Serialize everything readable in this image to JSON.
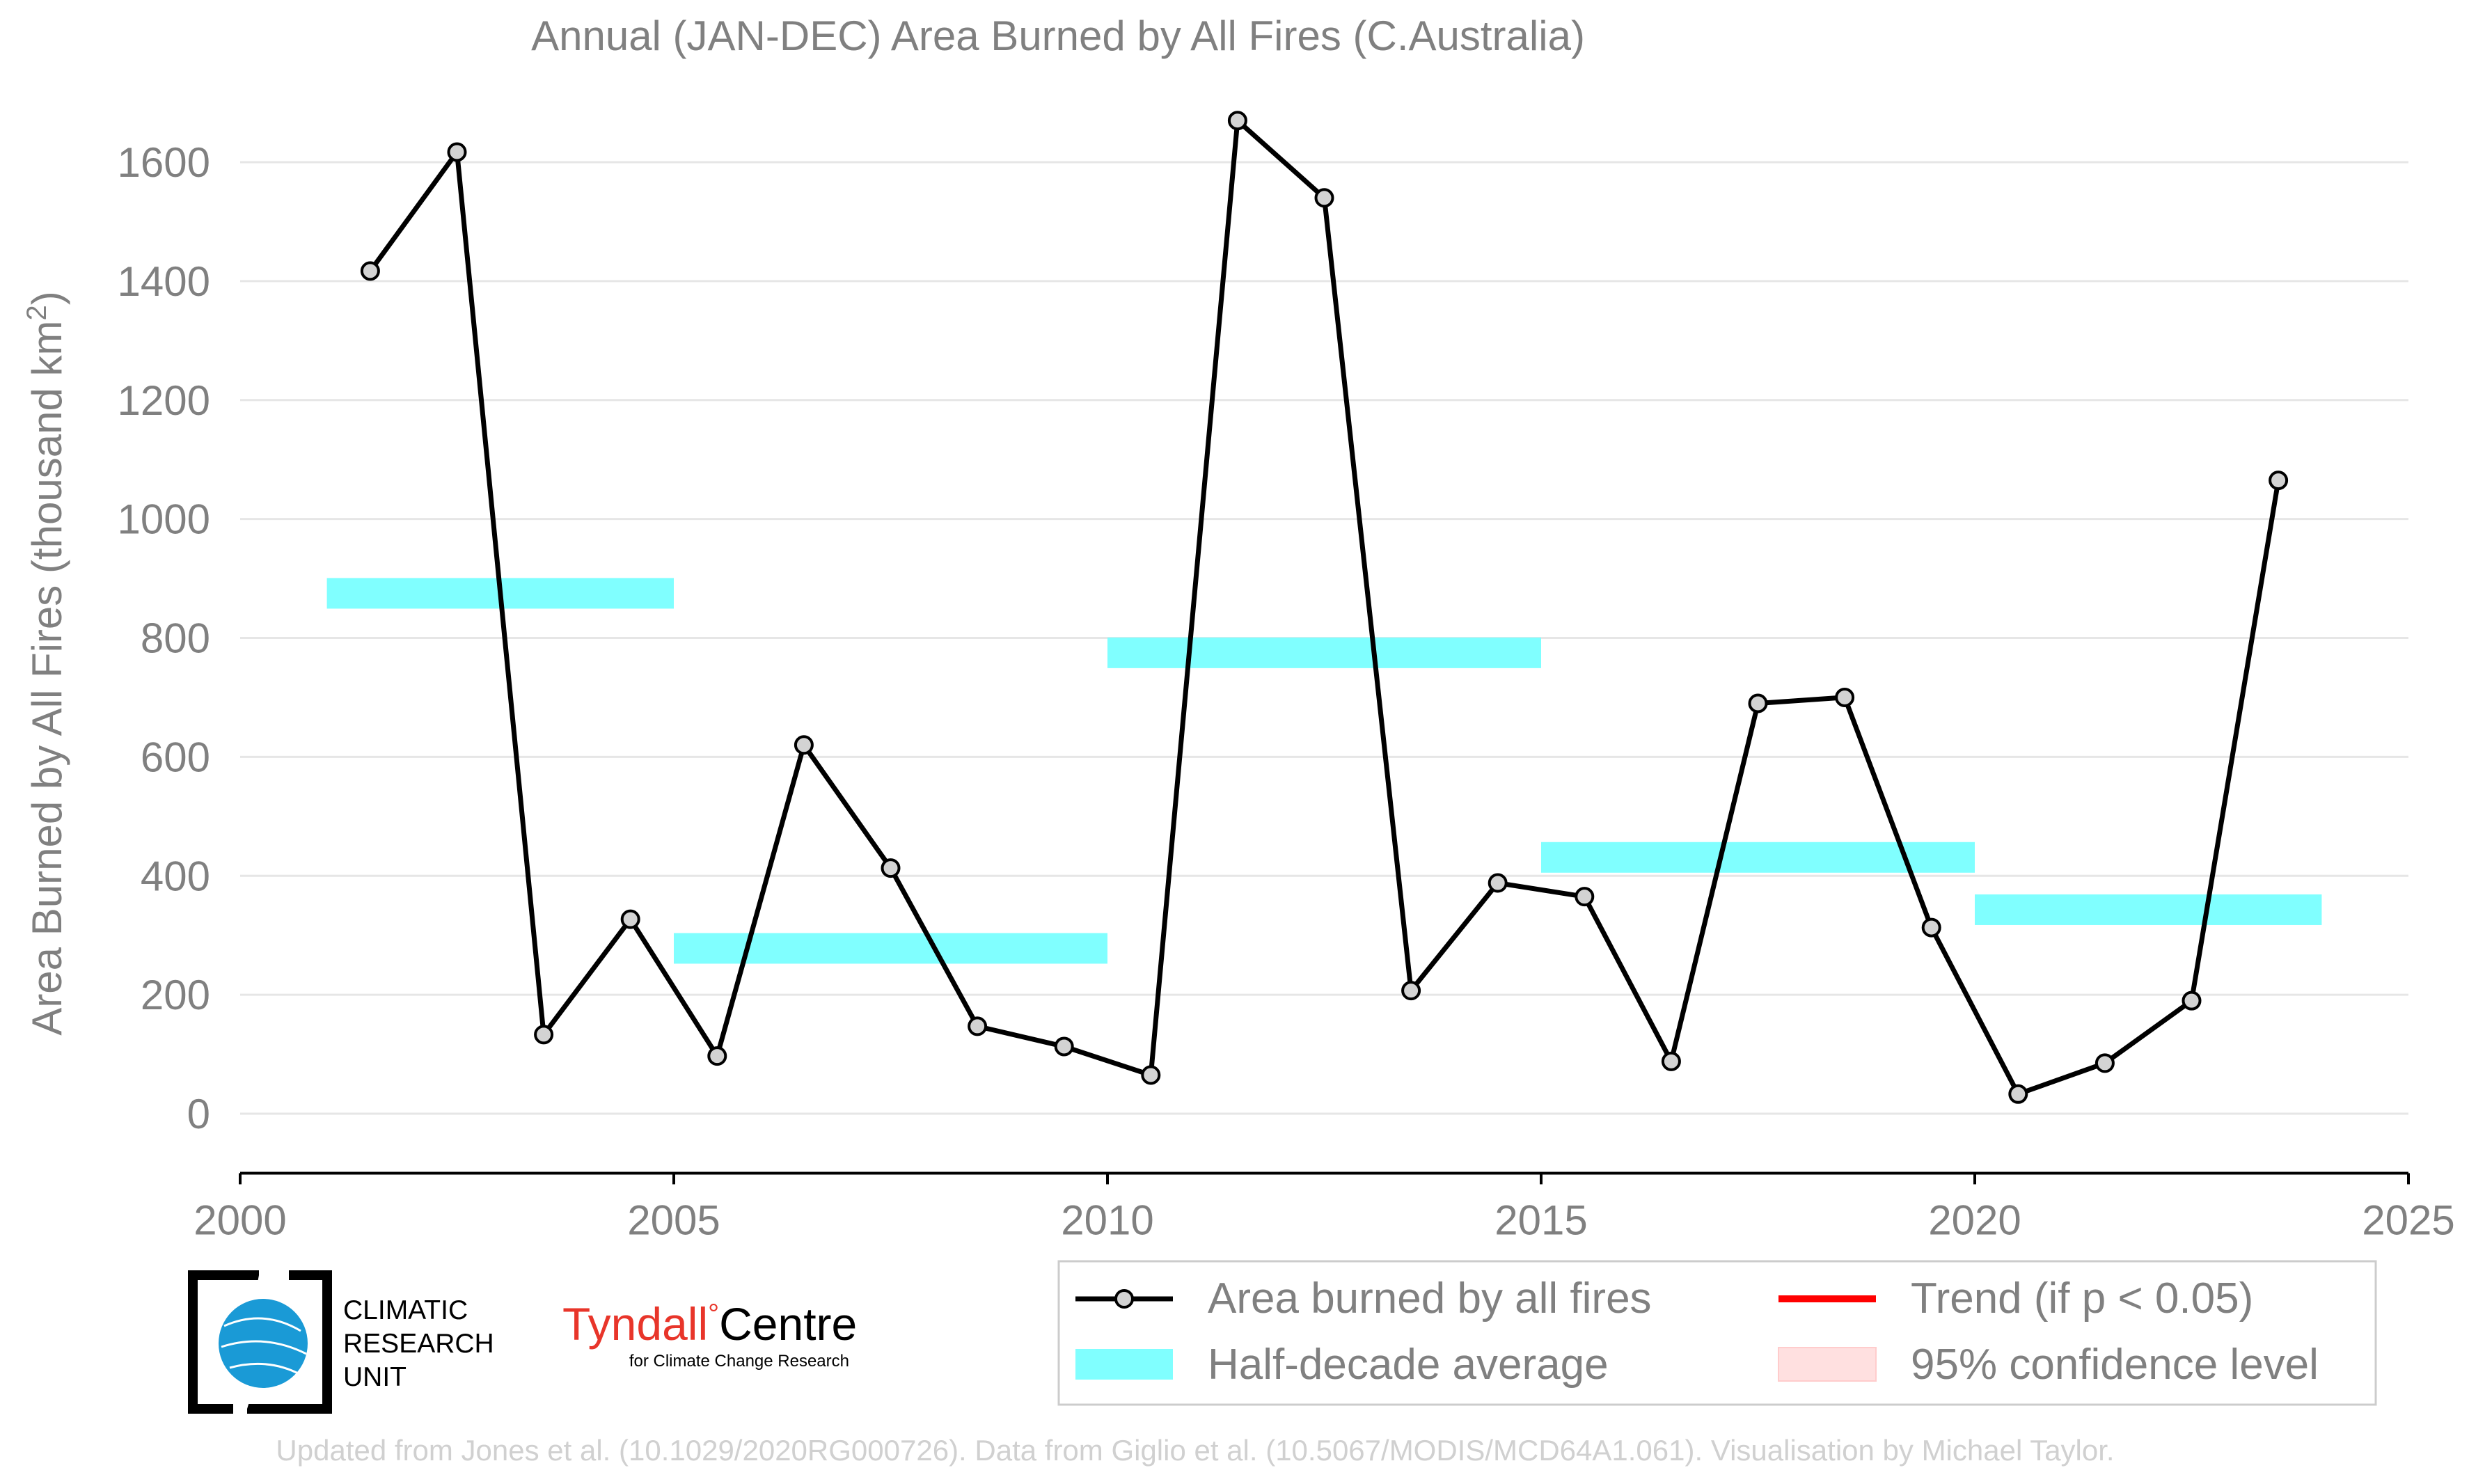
{
  "chart_data": {
    "type": "line",
    "title": "Annual (JAN-DEC) Area Burned by All Fires (C.Australia)",
    "ylabel_main": "Area Burned by All Fires (thousand km",
    "ylabel_sup": "2",
    "ylabel_close": ")",
    "xlim": [
      2000,
      2025
    ],
    "ylim": [
      -100,
      1700
    ],
    "xticks": [
      2000,
      2005,
      2010,
      2015,
      2020,
      2025
    ],
    "yticks": [
      0,
      200,
      400,
      600,
      800,
      1000,
      1200,
      1400,
      1600
    ],
    "grid": "horizontal",
    "series": [
      {
        "name": "Area burned by all fires",
        "color": "#000000",
        "marker_fill": "#d3d3d3",
        "x": [
          2001.5,
          2002.5,
          2003.5,
          2004.5,
          2005.5,
          2006.5,
          2007.5,
          2008.5,
          2009.5,
          2010.5,
          2011.5,
          2012.5,
          2013.5,
          2014.5,
          2015.5,
          2016.5,
          2017.5,
          2018.5,
          2019.5,
          2020.5,
          2021.5,
          2022.5,
          2023.5
        ],
        "y": [
          1417,
          1617,
          133,
          327,
          97,
          620,
          413,
          147,
          113,
          65,
          1670,
          1540,
          207,
          388,
          365,
          88,
          690,
          700,
          313,
          33,
          85,
          190,
          1065
        ]
      }
    ],
    "half_decade_average": {
      "name": "Half-decade average",
      "color": "#80ffff",
      "segments": [
        {
          "x0": 2001,
          "x1": 2005,
          "y": 875
        },
        {
          "x0": 2005,
          "x1": 2010,
          "y": 278
        },
        {
          "x0": 2010,
          "x1": 2015,
          "y": 775
        },
        {
          "x0": 2015,
          "x1": 2020,
          "y": 431
        },
        {
          "x0": 2020,
          "x1": 2024,
          "y": 343
        }
      ]
    },
    "legend": {
      "placement": "bottom-right",
      "items": [
        {
          "label": "Area burned by all fires",
          "kind": "line-marker",
          "color": "#000000"
        },
        {
          "label": "Trend (if p < 0.05)",
          "kind": "line",
          "color": "#ff0000"
        },
        {
          "label": "Half-decade average",
          "kind": "patch",
          "color": "#80ffff"
        },
        {
          "label": "95% confidence level",
          "kind": "patch",
          "color": "#ffe0e0"
        }
      ]
    }
  },
  "logos": {
    "cru_text": [
      "CLIMATIC",
      "RESEARCH",
      "UNIT"
    ],
    "tyndall_main": "Tyndall",
    "tyndall_degree": "°",
    "tyndall_centre": "Centre",
    "tyndall_sub": "for Climate Change Research"
  },
  "footer": "Updated from Jones et al. (10.1029/2020RG000726). Data from Giglio et al. (10.5067/MODIS/MCD64A1.061). Visualisation by Michael Taylor.",
  "colors": {
    "axis_text": "#808080",
    "grid": "#e6e6e6",
    "footer_text": "#d0d0d0",
    "tyndall_red": "#e8352a",
    "cru_blue": "#1a9ad6"
  }
}
